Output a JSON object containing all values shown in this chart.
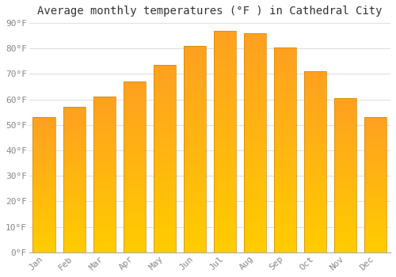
{
  "title": "Average monthly temperatures (°F ) in Cathedral City",
  "months": [
    "Jan",
    "Feb",
    "Mar",
    "Apr",
    "May",
    "Jun",
    "Jul",
    "Aug",
    "Sep",
    "Oct",
    "Nov",
    "Dec"
  ],
  "values": [
    53,
    57,
    61,
    67,
    73.5,
    81,
    87,
    86,
    80.5,
    71,
    60.5,
    53
  ],
  "bar_color_bottom": "#FFCC00",
  "bar_color_top": "#FFA020",
  "bar_edge_color": "#CC8800",
  "ylim": [
    0,
    90
  ],
  "yticks": [
    0,
    10,
    20,
    30,
    40,
    50,
    60,
    70,
    80,
    90
  ],
  "ytick_labels": [
    "0°F",
    "10°F",
    "20°F",
    "30°F",
    "40°F",
    "50°F",
    "60°F",
    "70°F",
    "80°F",
    "90°F"
  ],
  "background_color": "#FFFFFF",
  "grid_color": "#E0E0E0",
  "title_fontsize": 10,
  "tick_fontsize": 8,
  "bar_width": 0.75,
  "figsize": [
    5.0,
    3.5
  ],
  "dpi": 100
}
